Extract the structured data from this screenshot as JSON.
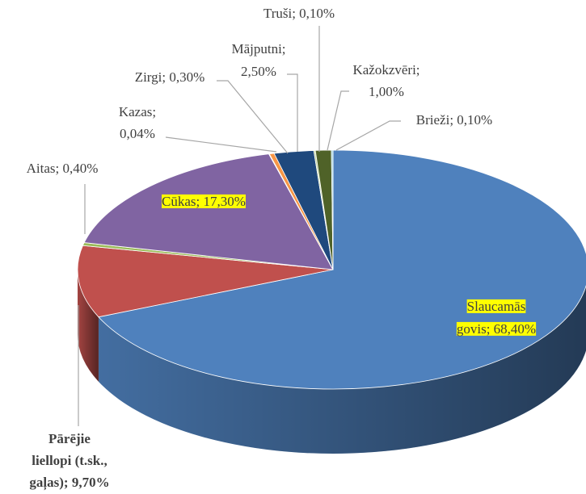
{
  "chart_data": {
    "type": "pie",
    "labels": [
      [
        "Slaucamās",
        "govis; 68,40%"
      ],
      [
        "Pārējie",
        "liellopi (t.sk.,",
        "gaļas); 9,70%"
      ],
      [
        "Aitas; 0,40%"
      ],
      [
        "Cūkas; 17,30%"
      ],
      [
        "Kazas;",
        "0,04%"
      ],
      [
        "Zirgi; 0,30%"
      ],
      [
        "Mājputni;",
        "2,50%"
      ],
      [
        "Truši; 0,10%"
      ],
      [
        "Kažokzvēri;",
        "1,00%"
      ],
      [
        "Brieži; 0,10%"
      ]
    ],
    "values": [
      68.4,
      9.7,
      0.4,
      17.3,
      0.04,
      0.3,
      2.5,
      0.1,
      1.0,
      0.1
    ],
    "colors": [
      "#4f81bd",
      "#c0504d",
      "#9bbb59",
      "#8064a2",
      "#4bacc6",
      "#f79646",
      "#1f497d",
      "#c3d69b",
      "#4f6228",
      "#92cddc"
    ]
  }
}
